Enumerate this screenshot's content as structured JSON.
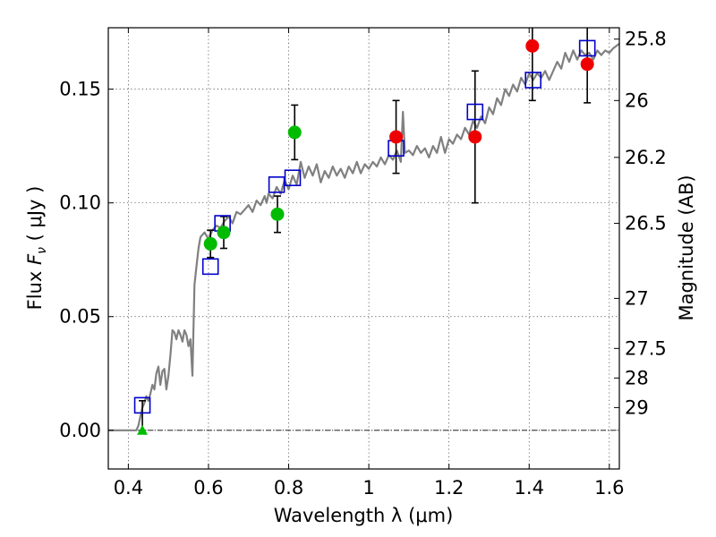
{
  "chart_data": {
    "type": "scatter",
    "xlabel": "Wavelength  λ (μm)",
    "ylabel_parts": {
      "prefix": "Flux  ",
      "symbol": "F",
      "subscript": "ν",
      "unit": "  ( μJy )"
    },
    "ylabel_right": "Magnitude (AB)",
    "xlim": [
      0.35,
      1.625
    ],
    "ylim": [
      -0.017,
      0.177
    ],
    "x_ticks": [
      0.4,
      0.6,
      0.8,
      1.0,
      1.2,
      1.4,
      1.6
    ],
    "x_tick_labels": [
      "0.4",
      "0.6",
      "0.8",
      "1",
      "1.2",
      "1.4",
      "1.6"
    ],
    "y_ticks": [
      0.0,
      0.05,
      0.1,
      0.15
    ],
    "y_tick_labels": [
      "0.00",
      "0.05",
      "0.10",
      "0.15"
    ],
    "right_ticks": [
      {
        "label": "25.8",
        "flux": 0.172
      },
      {
        "label": "26",
        "flux": 0.145
      },
      {
        "label": "26.2",
        "flux": 0.12
      },
      {
        "label": "26.5",
        "flux": 0.091
      },
      {
        "label": "27",
        "flux": 0.058
      },
      {
        "label": "27.5",
        "flux": 0.036
      },
      {
        "label": "28",
        "flux": 0.023
      },
      {
        "label": "29",
        "flux": 0.01
      }
    ],
    "grid": true,
    "colors": {
      "model": "#808080",
      "template": "#0000cc",
      "green": "#00bb00",
      "red": "#ee0000"
    },
    "series": [
      {
        "kind": "model_line",
        "points": [
          [
            0.35,
            0.0
          ],
          [
            0.4,
            0.0
          ],
          [
            0.42,
            0.0
          ],
          [
            0.425,
            0.002
          ],
          [
            0.43,
            0.006
          ],
          [
            0.435,
            0.01
          ],
          [
            0.44,
            0.012
          ],
          [
            0.445,
            0.015
          ],
          [
            0.45,
            0.013
          ],
          [
            0.455,
            0.016
          ],
          [
            0.46,
            0.02
          ],
          [
            0.465,
            0.018
          ],
          [
            0.47,
            0.025
          ],
          [
            0.475,
            0.028
          ],
          [
            0.48,
            0.02
          ],
          [
            0.485,
            0.026
          ],
          [
            0.49,
            0.027
          ],
          [
            0.495,
            0.018
          ],
          [
            0.5,
            0.024
          ],
          [
            0.505,
            0.033
          ],
          [
            0.51,
            0.044
          ],
          [
            0.515,
            0.043
          ],
          [
            0.52,
            0.04
          ],
          [
            0.525,
            0.044
          ],
          [
            0.53,
            0.042
          ],
          [
            0.535,
            0.039
          ],
          [
            0.54,
            0.044
          ],
          [
            0.545,
            0.042
          ],
          [
            0.55,
            0.037
          ],
          [
            0.555,
            0.04
          ],
          [
            0.56,
            0.024
          ],
          [
            0.565,
            0.064
          ],
          [
            0.57,
            0.072
          ],
          [
            0.575,
            0.08
          ],
          [
            0.58,
            0.085
          ],
          [
            0.59,
            0.087
          ],
          [
            0.6,
            0.084
          ],
          [
            0.61,
            0.088
          ],
          [
            0.62,
            0.09
          ],
          [
            0.63,
            0.089
          ],
          [
            0.64,
            0.092
          ],
          [
            0.65,
            0.094
          ],
          [
            0.66,
            0.091
          ],
          [
            0.67,
            0.096
          ],
          [
            0.68,
            0.095
          ],
          [
            0.69,
            0.097
          ],
          [
            0.7,
            0.099
          ],
          [
            0.71,
            0.096
          ],
          [
            0.72,
            0.101
          ],
          [
            0.73,
            0.099
          ],
          [
            0.74,
            0.103
          ],
          [
            0.745,
            0.1
          ],
          [
            0.75,
            0.104
          ],
          [
            0.76,
            0.102
          ],
          [
            0.77,
            0.107
          ],
          [
            0.78,
            0.104
          ],
          [
            0.79,
            0.11
          ],
          [
            0.8,
            0.106
          ],
          [
            0.81,
            0.112
          ],
          [
            0.82,
            0.108
          ],
          [
            0.83,
            0.118
          ],
          [
            0.84,
            0.111
          ],
          [
            0.85,
            0.116
          ],
          [
            0.86,
            0.112
          ],
          [
            0.87,
            0.117
          ],
          [
            0.88,
            0.109
          ],
          [
            0.89,
            0.114
          ],
          [
            0.9,
            0.111
          ],
          [
            0.91,
            0.116
          ],
          [
            0.92,
            0.112
          ],
          [
            0.93,
            0.115
          ],
          [
            0.94,
            0.111
          ],
          [
            0.95,
            0.116
          ],
          [
            0.96,
            0.113
          ],
          [
            0.97,
            0.118
          ],
          [
            0.98,
            0.113
          ],
          [
            0.99,
            0.117
          ],
          [
            1.0,
            0.115
          ],
          [
            1.01,
            0.118
          ],
          [
            1.02,
            0.116
          ],
          [
            1.03,
            0.12
          ],
          [
            1.04,
            0.117
          ],
          [
            1.05,
            0.121
          ],
          [
            1.06,
            0.119
          ],
          [
            1.07,
            0.123
          ],
          [
            1.08,
            0.118
          ],
          [
            1.085,
            0.14
          ],
          [
            1.09,
            0.122
          ],
          [
            1.1,
            0.123
          ],
          [
            1.11,
            0.121
          ],
          [
            1.12,
            0.125
          ],
          [
            1.13,
            0.122
          ],
          [
            1.14,
            0.124
          ],
          [
            1.15,
            0.12
          ],
          [
            1.16,
            0.125
          ],
          [
            1.17,
            0.122
          ],
          [
            1.18,
            0.129
          ],
          [
            1.19,
            0.122
          ],
          [
            1.2,
            0.128
          ],
          [
            1.21,
            0.126
          ],
          [
            1.22,
            0.13
          ],
          [
            1.23,
            0.128
          ],
          [
            1.24,
            0.133
          ],
          [
            1.25,
            0.13
          ],
          [
            1.26,
            0.136
          ],
          [
            1.27,
            0.133
          ],
          [
            1.28,
            0.138
          ],
          [
            1.29,
            0.135
          ],
          [
            1.3,
            0.142
          ],
          [
            1.31,
            0.139
          ],
          [
            1.32,
            0.146
          ],
          [
            1.33,
            0.143
          ],
          [
            1.34,
            0.15
          ],
          [
            1.35,
            0.147
          ],
          [
            1.36,
            0.152
          ],
          [
            1.37,
            0.149
          ],
          [
            1.38,
            0.155
          ],
          [
            1.39,
            0.152
          ],
          [
            1.4,
            0.157
          ],
          [
            1.41,
            0.154
          ],
          [
            1.42,
            0.157
          ],
          [
            1.43,
            0.155
          ],
          [
            1.44,
            0.158
          ],
          [
            1.45,
            0.154
          ],
          [
            1.46,
            0.158
          ],
          [
            1.47,
            0.162
          ],
          [
            1.48,
            0.159
          ],
          [
            1.49,
            0.166
          ],
          [
            1.5,
            0.162
          ],
          [
            1.51,
            0.167
          ],
          [
            1.52,
            0.163
          ],
          [
            1.53,
            0.167
          ],
          [
            1.54,
            0.165
          ],
          [
            1.55,
            0.166
          ],
          [
            1.56,
            0.163
          ],
          [
            1.57,
            0.167
          ],
          [
            1.58,
            0.165
          ],
          [
            1.59,
            0.167
          ],
          [
            1.6,
            0.166
          ],
          [
            1.61,
            0.168
          ],
          [
            1.625,
            0.17
          ]
        ]
      },
      {
        "kind": "template_squares",
        "points": [
          [
            0.435,
            0.011
          ],
          [
            0.605,
            0.072
          ],
          [
            0.635,
            0.091
          ],
          [
            0.77,
            0.108
          ],
          [
            0.81,
            0.111
          ],
          [
            1.068,
            0.124
          ],
          [
            1.265,
            0.14
          ],
          [
            1.41,
            0.154
          ],
          [
            1.545,
            0.168
          ]
        ]
      },
      {
        "kind": "green_points",
        "points": [
          {
            "x": 0.605,
            "y": 0.082,
            "err": 0.006
          },
          {
            "x": 0.638,
            "y": 0.087,
            "err": 0.007
          },
          {
            "x": 0.772,
            "y": 0.095,
            "err": 0.008
          },
          {
            "x": 0.815,
            "y": 0.131,
            "err": 0.012
          }
        ]
      },
      {
        "kind": "red_points",
        "points": [
          {
            "x": 1.068,
            "y": 0.129,
            "err": 0.016
          },
          {
            "x": 1.265,
            "y": 0.129,
            "err": 0.029
          },
          {
            "x": 1.408,
            "y": 0.169,
            "err": 0.024
          },
          {
            "x": 1.545,
            "y": 0.161,
            "err": 0.017
          }
        ]
      },
      {
        "kind": "green_upper_limit",
        "points": [
          {
            "x": 0.435,
            "y": 0.0,
            "err_up": 0.013
          }
        ]
      }
    ]
  }
}
